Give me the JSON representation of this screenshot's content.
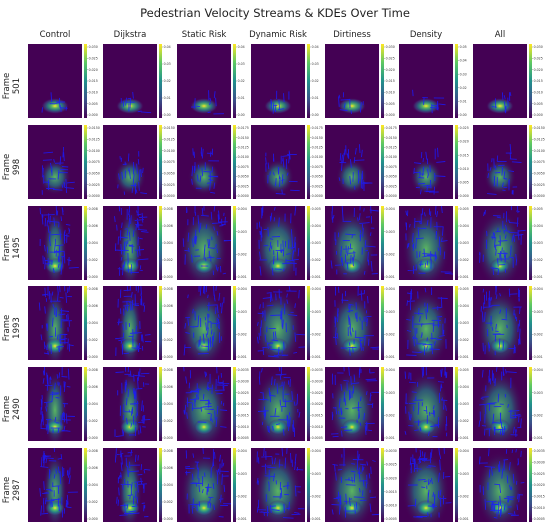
{
  "figure": {
    "title": "Pedestrian Velocity Streams & KDEs Over Time",
    "columns": [
      "Control",
      "Dijkstra",
      "Static Risk",
      "Dynamic Risk",
      "Dirtiness",
      "Density",
      "All"
    ],
    "row_prefix": "Frame",
    "frames": [
      "501",
      "998",
      "1495",
      "1993",
      "2490",
      "2987"
    ]
  },
  "colors": {
    "background": "#440154",
    "colormap": [
      "#440154",
      "#3b528b",
      "#21918c",
      "#5ec962",
      "#fde725"
    ],
    "stream": "#1a1aff"
  },
  "chart_data": {
    "type": "heatmap",
    "title": "Pedestrian Velocity Streams & KDEs Over Time",
    "colormap": "viridis",
    "columns": [
      "Control",
      "Dijkstra",
      "Static Risk",
      "Dynamic Risk",
      "Dirtiness",
      "Density",
      "All"
    ],
    "rows": [
      "501",
      "998",
      "1495",
      "1993",
      "2490",
      "2987"
    ],
    "colorbar_ticks": [
      [
        [
          "0.030",
          "0.025",
          "0.020",
          "0.015",
          "0.010",
          "0.005",
          "0.000"
        ],
        [
          "0.04",
          "0.03",
          "0.02",
          "0.01",
          "0.00"
        ],
        [
          "0.04",
          "0.03",
          "0.02",
          "0.01",
          "0.00"
        ],
        [
          "0.04",
          "0.03",
          "0.02",
          "0.01",
          "0.00"
        ],
        [
          "0.030",
          "0.025",
          "0.020",
          "0.015",
          "0.010",
          "0.005",
          "0.000"
        ],
        [
          "0.05",
          "0.04",
          "0.03",
          "0.02",
          "0.01",
          "0.00"
        ],
        [
          "0.030",
          "0.025",
          "0.020",
          "0.015",
          "0.010",
          "0.005",
          "0.000"
        ]
      ],
      [
        [
          "0.0150",
          "0.0125",
          "0.0100",
          "0.0075",
          "0.0050",
          "0.0025",
          "0.0000"
        ],
        [
          "0.0150",
          "0.0125",
          "0.0100",
          "0.0075",
          "0.0050",
          "0.0025",
          "0.0000"
        ],
        [
          "0.0175",
          "0.0150",
          "0.0125",
          "0.0100",
          "0.0075",
          "0.0050",
          "0.0025",
          "0.0000"
        ],
        [
          "0.0175",
          "0.0150",
          "0.0125",
          "0.0100",
          "0.0075",
          "0.0050",
          "0.0025",
          "0.0000"
        ],
        [
          "0.0175",
          "0.0150",
          "0.0125",
          "0.0100",
          "0.0075",
          "0.0050",
          "0.0025",
          "0.0000"
        ],
        [
          "0.025",
          "0.020",
          "0.015",
          "0.010",
          "0.005",
          "0.000"
        ],
        [
          "0.0150",
          "0.0125",
          "0.0100",
          "0.0075",
          "0.0050",
          "0.0025",
          "0.0000"
        ]
      ],
      [
        [
          "0.008",
          "0.006",
          "0.004",
          "0.002",
          "0.000"
        ],
        [
          "0.008",
          "0.006",
          "0.004",
          "0.002",
          "0.000"
        ],
        [
          "0.004",
          "0.003",
          "0.002",
          "0.001"
        ],
        [
          "0.005",
          "0.004",
          "0.003",
          "0.002",
          "0.001"
        ],
        [
          "0.004",
          "0.003",
          "0.002",
          "0.001"
        ],
        [
          "0.005",
          "0.004",
          "0.003",
          "0.002",
          "0.001"
        ],
        [
          "0.005",
          "0.004",
          "0.003",
          "0.002",
          "0.001"
        ]
      ],
      [
        [
          "0.008",
          "0.006",
          "0.004",
          "0.002",
          "0.000"
        ],
        [
          "0.008",
          "0.006",
          "0.004",
          "0.002",
          "0.000"
        ],
        [
          "0.004",
          "0.003",
          "0.002",
          "0.001"
        ],
        [
          "0.004",
          "0.003",
          "0.002",
          "0.001"
        ],
        [
          "0.004",
          "0.003",
          "0.002",
          "0.001"
        ],
        [
          "0.005",
          "0.004",
          "0.003",
          "0.002",
          "0.001"
        ],
        [
          "0.004",
          "0.003",
          "0.002",
          "0.001"
        ]
      ],
      [
        [
          "0.008",
          "0.006",
          "0.004",
          "0.002",
          "0.000"
        ],
        [
          "0.008",
          "0.006",
          "0.004",
          "0.002",
          "0.000"
        ],
        [
          "0.0035",
          "0.0030",
          "0.0025",
          "0.0020",
          "0.0015",
          "0.0010",
          "0.0005"
        ],
        [
          "0.0035",
          "0.0030",
          "0.0025",
          "0.0020",
          "0.0015",
          "0.0010",
          "0.0005"
        ],
        [
          "0.004",
          "0.003",
          "0.002",
          "0.001"
        ],
        [
          "0.005",
          "0.004",
          "0.003",
          "0.002",
          "0.001"
        ],
        [
          "0.004",
          "0.003",
          "0.002",
          "0.001"
        ]
      ],
      [
        [
          "0.008",
          "0.006",
          "0.004",
          "0.002",
          "0.000"
        ],
        [
          "0.008",
          "0.006",
          "0.004",
          "0.002",
          "0.000"
        ],
        [
          "0.004",
          "0.003",
          "0.002",
          "0.001"
        ],
        [
          "0.004",
          "0.003",
          "0.002",
          "0.001"
        ],
        [
          "0.0030",
          "0.0025",
          "0.0020",
          "0.0015",
          "0.0010",
          "0.0005"
        ],
        [
          "0.004",
          "0.003",
          "0.002",
          "0.001"
        ],
        [
          "0.0035",
          "0.0030",
          "0.0025",
          "0.0020",
          "0.0015",
          "0.0010",
          "0.0005"
        ]
      ]
    ]
  }
}
